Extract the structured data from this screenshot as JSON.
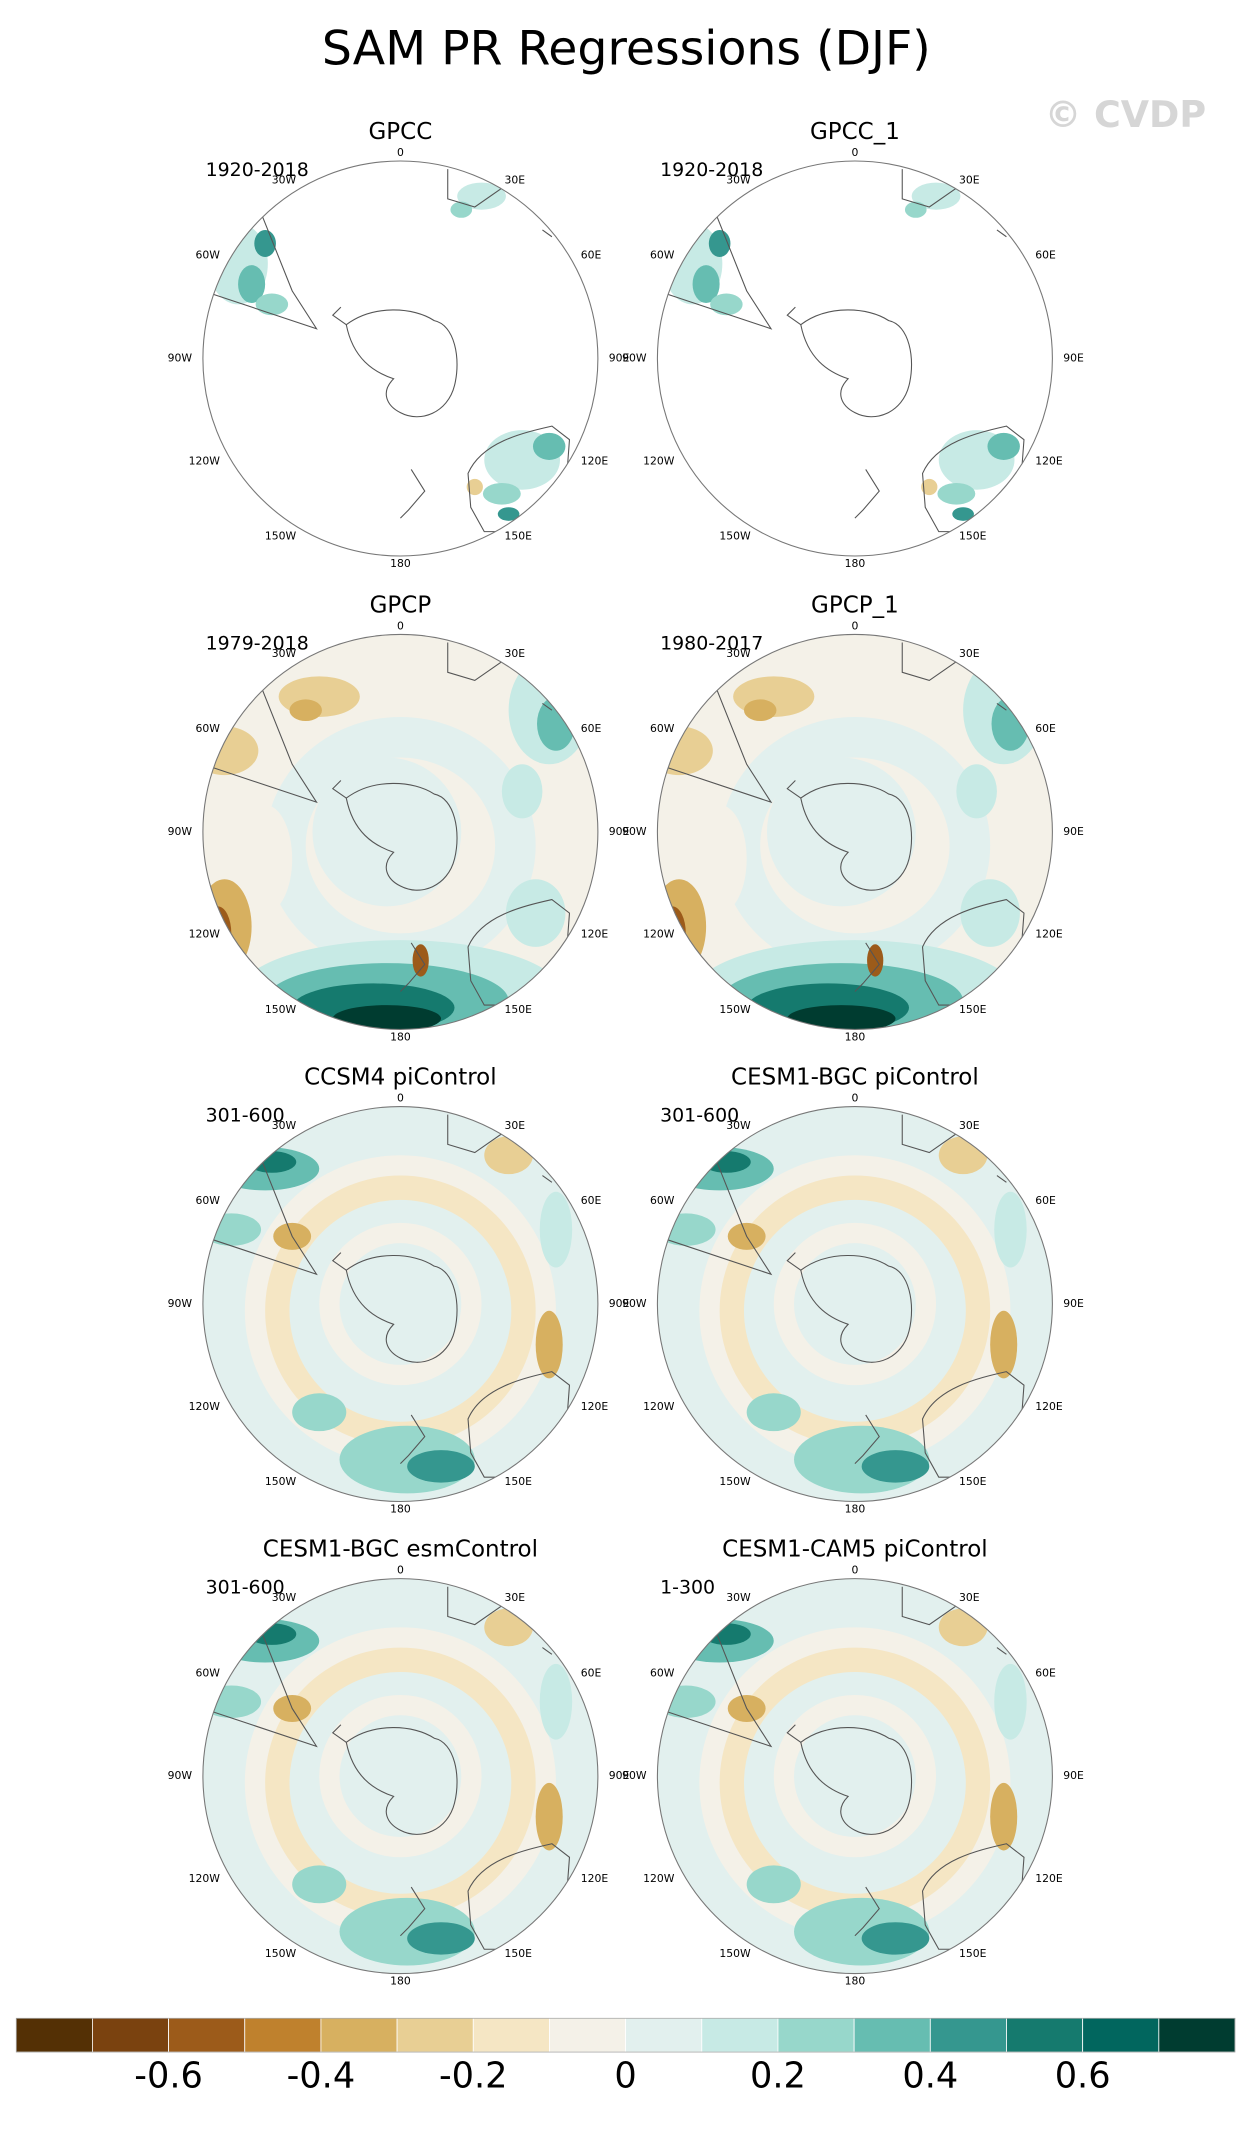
{
  "title": "SAM PR Regressions (DJF)",
  "watermark": "© CVDP",
  "panels": [
    {
      "title": "GPCC",
      "period": "1920-2018"
    },
    {
      "title": "GPCC_1",
      "period": "1920-2018"
    },
    {
      "title": "GPCP",
      "period": "1979-2018"
    },
    {
      "title": "GPCP_1",
      "period": "1980-2017"
    },
    {
      "title": "CCSM4 piControl",
      "period": "301-600"
    },
    {
      "title": "CESM1-BGC piControl",
      "period": "301-600"
    },
    {
      "title": "CESM1-BGC esmControl",
      "period": "301-600"
    },
    {
      "title": "CESM1-CAM5 piControl",
      "period": "1-300"
    }
  ],
  "longitude_labels": [
    "0",
    "30E",
    "60E",
    "90E",
    "120E",
    "150E",
    "180",
    "150W",
    "120W",
    "90W",
    "60W",
    "30W"
  ],
  "colorbar": {
    "lim": [
      -0.8,
      0.8
    ],
    "colors": [
      "#543005",
      "#7a420f",
      "#9c5b1a",
      "#bf812d",
      "#d7b060",
      "#e8cf94",
      "#f5e6c4",
      "#f4f1e8",
      "#e2f0ee",
      "#c7eae5",
      "#97d7cb",
      "#66bdb1",
      "#35978f",
      "#157a6e",
      "#01665e",
      "#003c30"
    ],
    "ticks": [
      -0.6,
      -0.4,
      -0.2,
      0,
      0.2,
      0.4,
      0.6
    ]
  }
}
